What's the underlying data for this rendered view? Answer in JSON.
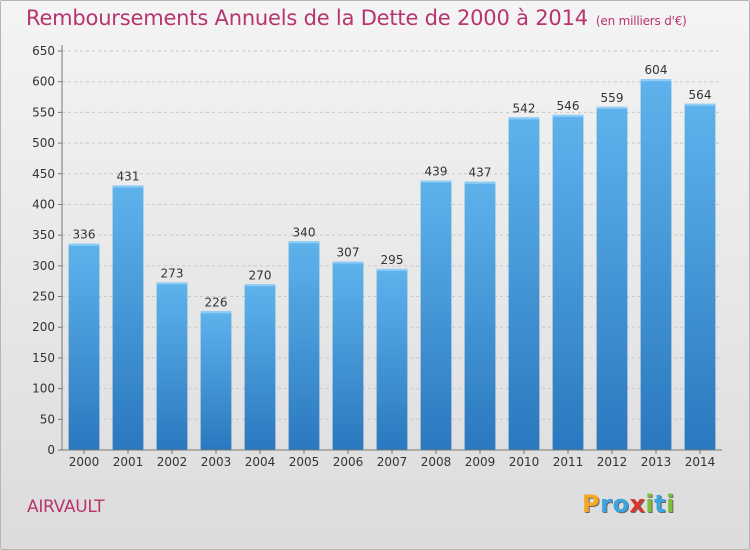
{
  "chart_data": {
    "type": "bar",
    "title": "Remboursements Annuels de la Dette de 2000 à 2014",
    "subtitle": "(en milliers d'€)",
    "categories": [
      "2000",
      "2001",
      "2002",
      "2003",
      "2004",
      "2005",
      "2006",
      "2007",
      "2008",
      "2009",
      "2010",
      "2011",
      "2012",
      "2013",
      "2014"
    ],
    "values": [
      336,
      431,
      273,
      226,
      270,
      340,
      307,
      295,
      439,
      437,
      542,
      546,
      559,
      604,
      564
    ],
    "xlabel": "",
    "ylabel": "",
    "ylim": [
      0,
      650
    ],
    "yticks": [
      0,
      50,
      100,
      150,
      200,
      250,
      300,
      350,
      400,
      450,
      500,
      550,
      600,
      650
    ],
    "grid": true,
    "bar_color": "#4a9fdf"
  },
  "footer": {
    "commune": "AIRVAULT",
    "logo_text": "Proxiti",
    "logo_letters": [
      {
        "char": "P",
        "color": "#f5a623"
      },
      {
        "char": "r",
        "color": "#3ca4e0"
      },
      {
        "char": "o",
        "color": "#3ca4e0"
      },
      {
        "char": "x",
        "color": "#d9362c"
      },
      {
        "char": "i",
        "color": "#7cbf3a"
      },
      {
        "char": "t",
        "color": "#3ca4e0"
      },
      {
        "char": "i",
        "color": "#7cbf3a"
      }
    ]
  }
}
